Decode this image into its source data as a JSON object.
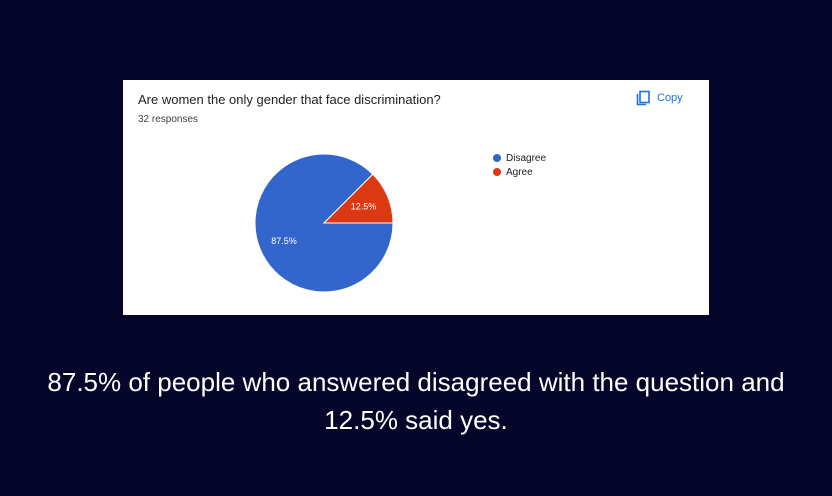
{
  "card": {
    "question": "Are women the only gender that face discrimination?",
    "responses": "32 responses",
    "copy_label": "Copy",
    "copy_icon": "copy-icon"
  },
  "chart_data": {
    "type": "pie",
    "categories": [
      "Disagree",
      "Agree"
    ],
    "values": [
      87.5,
      12.5
    ],
    "labels": [
      "87.5%",
      "12.5%"
    ],
    "colors": [
      "#3366cc",
      "#dc3912"
    ],
    "legend": "right"
  },
  "caption": "87.5% of people who answered disagreed with the question and 12.5% said yes."
}
